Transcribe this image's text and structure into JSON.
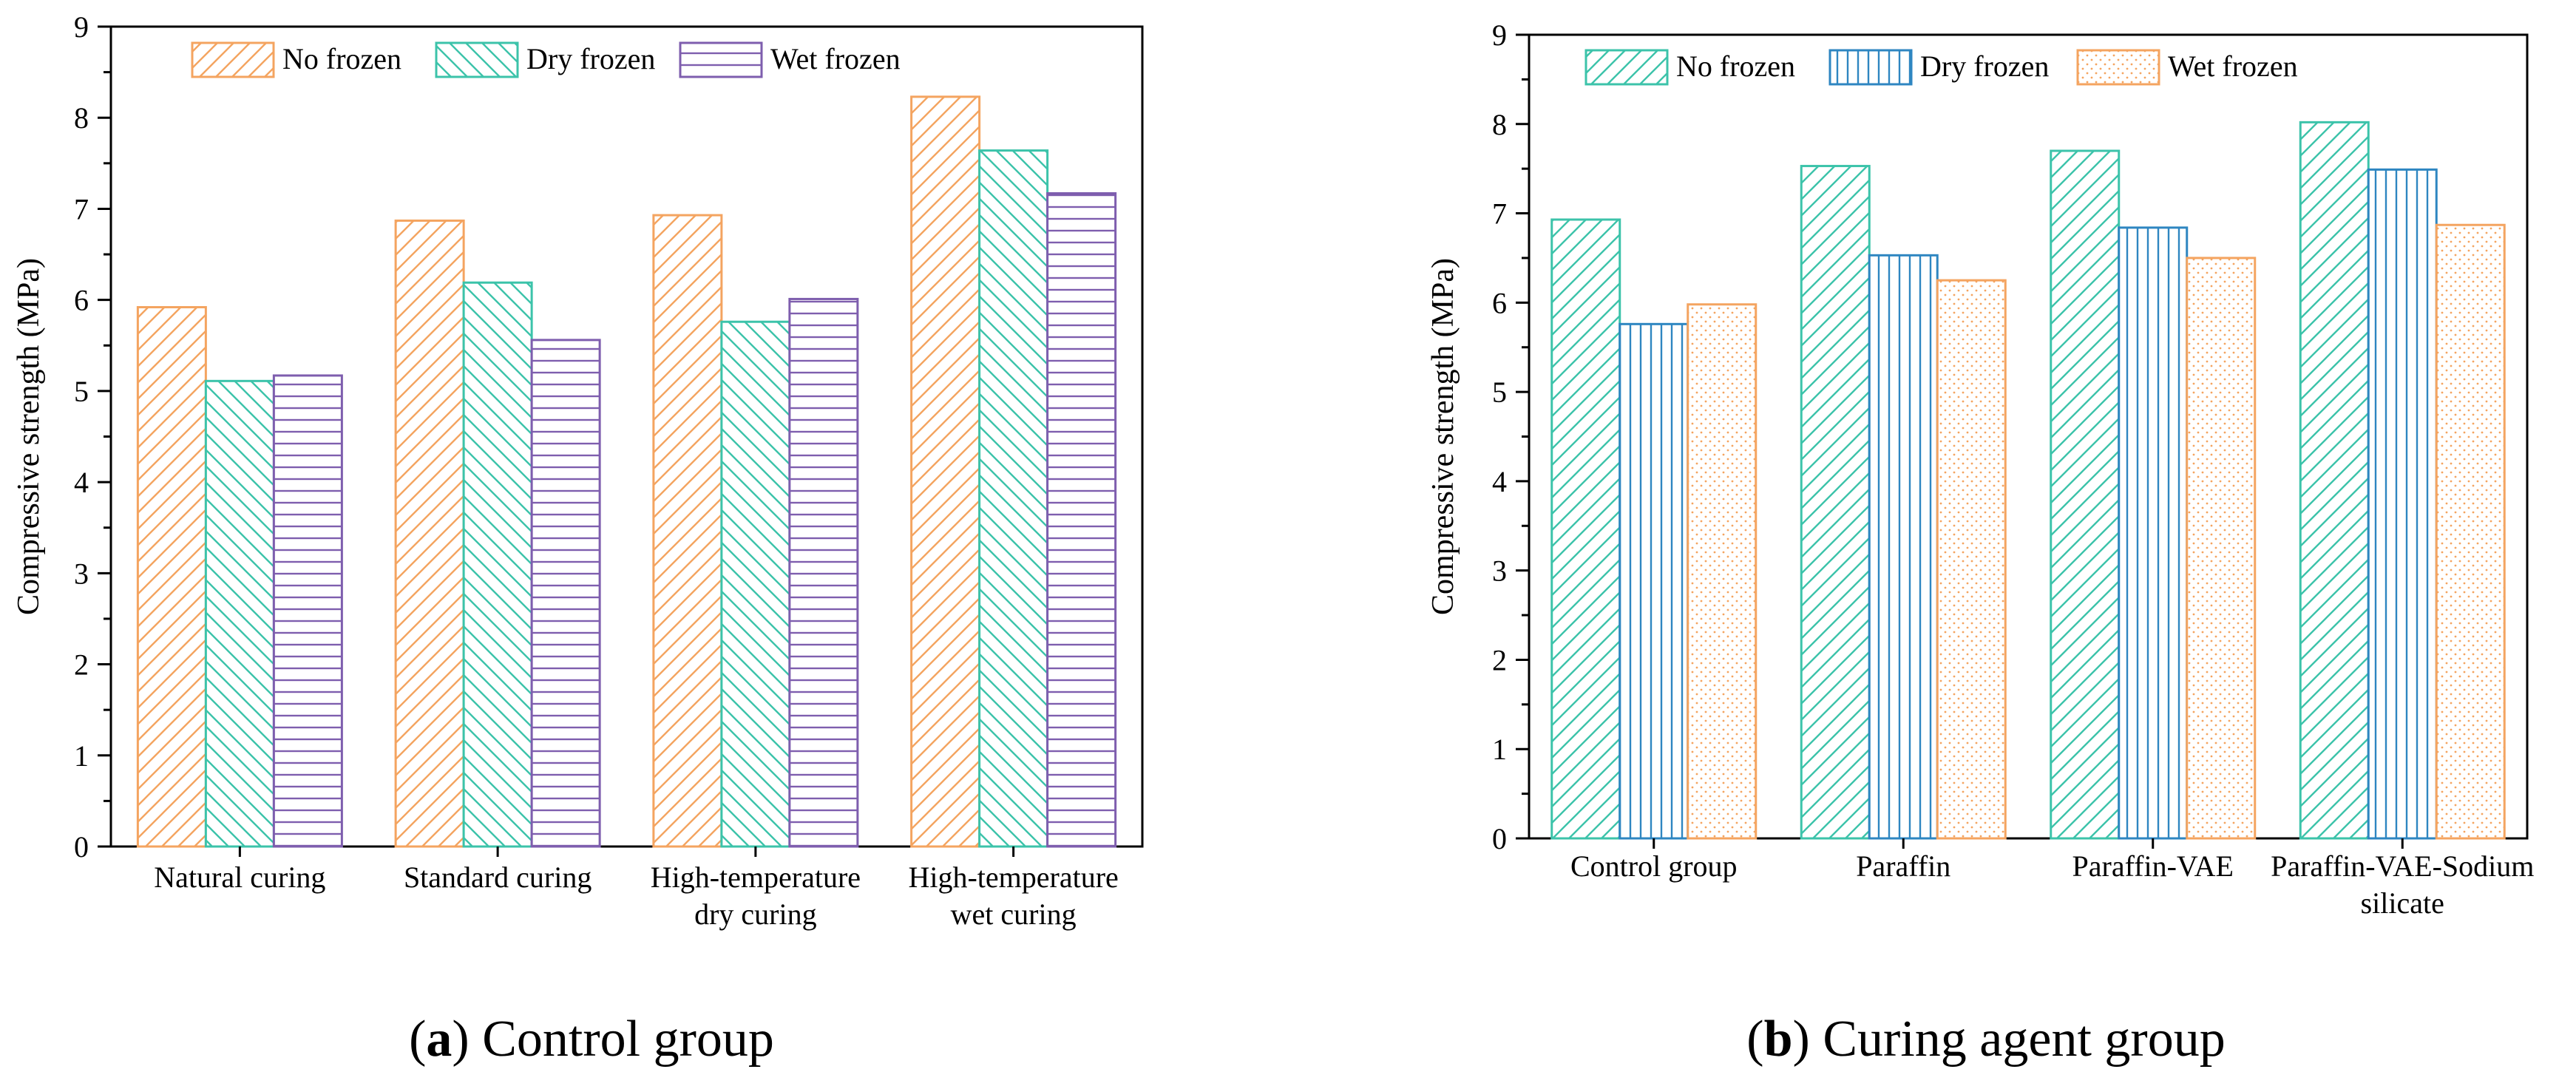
{
  "chart_data": [
    {
      "type": "bar",
      "caption_letter": "a",
      "caption_text": ") Control group",
      "ylabel": "Compressive strength (MPa)",
      "ylim": [
        0,
        9
      ],
      "yticks": [
        0,
        1,
        2,
        3,
        4,
        5,
        6,
        7,
        8,
        9
      ],
      "categories": [
        [
          "Natural curing"
        ],
        [
          "Standard curing"
        ],
        [
          "High-temperature",
          "dry curing"
        ],
        [
          "High-temperature",
          "wet curing"
        ]
      ],
      "series": [
        {
          "name": "No frozen",
          "color": "#F4A460",
          "pattern": "diag-up",
          "values": [
            5.92,
            6.87,
            6.93,
            8.23
          ]
        },
        {
          "name": "Dry frozen",
          "color": "#3CC3AA",
          "pattern": "diag-down",
          "values": [
            5.11,
            6.19,
            5.76,
            7.64
          ]
        },
        {
          "name": "Wet frozen",
          "color": "#7E5EAE",
          "pattern": "horizontal",
          "values": [
            5.17,
            5.56,
            6.01,
            7.17
          ]
        }
      ]
    },
    {
      "type": "bar",
      "caption_letter": "b",
      "caption_text": ") Curing agent group",
      "ylabel": "Compressive strength (MPa)",
      "ylim": [
        0,
        9
      ],
      "yticks": [
        0,
        1,
        2,
        3,
        4,
        5,
        6,
        7,
        8,
        9
      ],
      "categories": [
        [
          "Control group"
        ],
        [
          "Paraffin"
        ],
        [
          "Paraffin-VAE"
        ],
        [
          "Paraffin-VAE-Sodium",
          "silicate"
        ]
      ],
      "series": [
        {
          "name": "No frozen",
          "color": "#3CC3AA",
          "pattern": "diag-up",
          "values": [
            6.93,
            7.53,
            7.7,
            8.02
          ]
        },
        {
          "name": "Dry frozen",
          "color": "#2E86C1",
          "pattern": "vertical",
          "values": [
            5.76,
            6.53,
            6.84,
            7.49
          ]
        },
        {
          "name": "Wet frozen",
          "color": "#F4A460",
          "pattern": "dots",
          "values": [
            5.98,
            6.25,
            6.5,
            6.87
          ]
        }
      ]
    }
  ]
}
